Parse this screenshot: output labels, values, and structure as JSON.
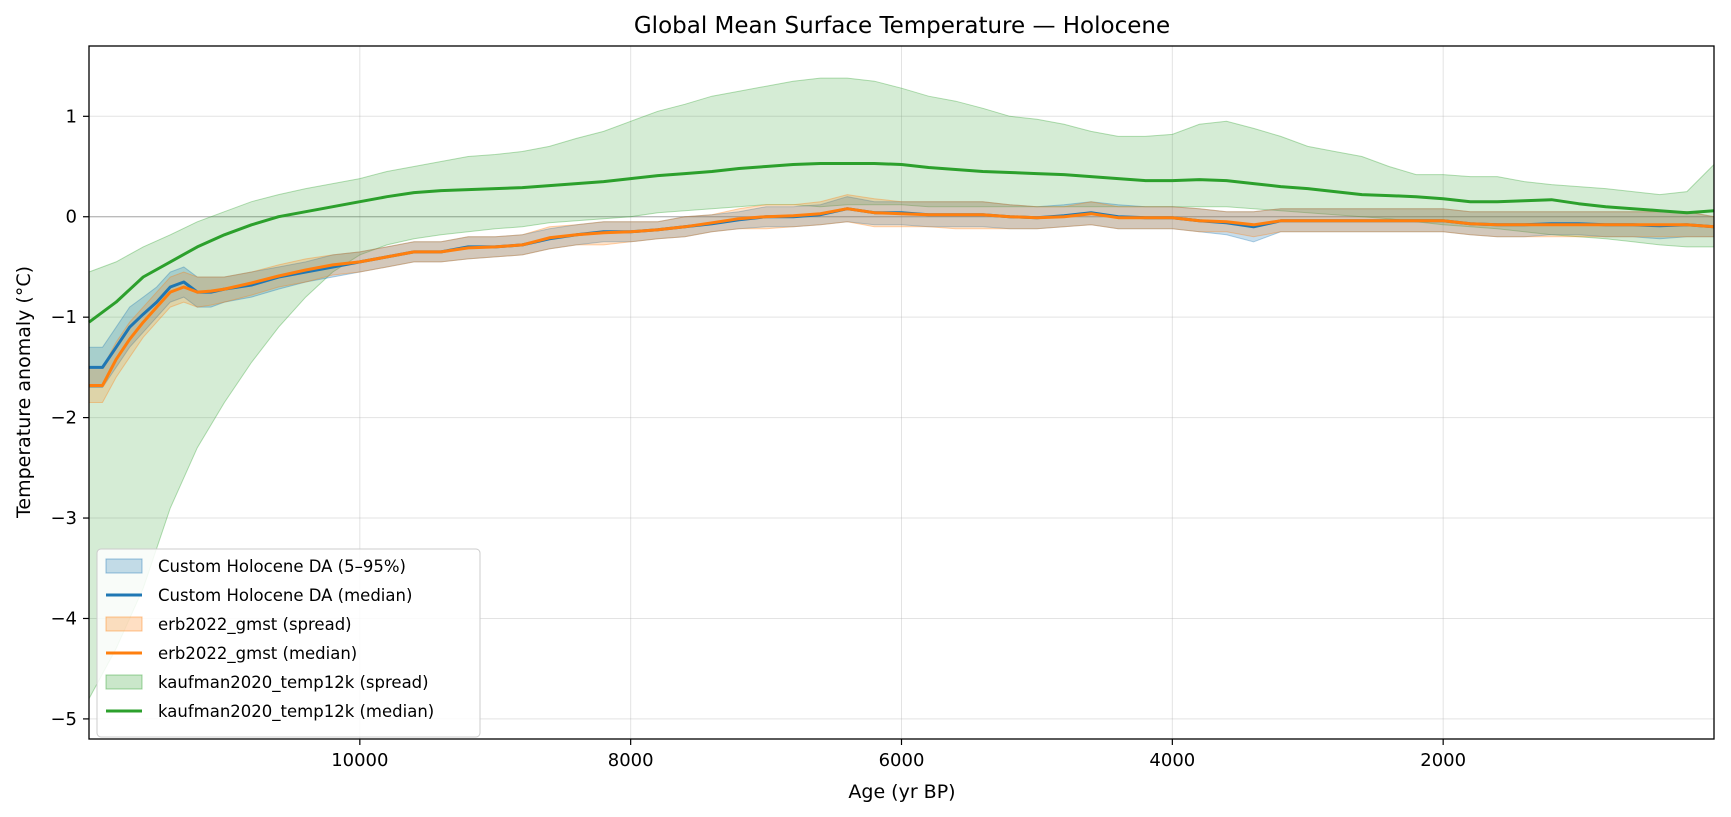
{
  "chart_data": {
    "type": "line",
    "title": "Global Mean Surface Temperature — Holocene",
    "xlabel": "Age (yr BP)",
    "ylabel": "Temperature anomaly (°C)",
    "xlim": [
      12000,
      0
    ],
    "x_reversed": true,
    "ylim": [
      -5.2,
      1.7
    ],
    "grid": true,
    "zero_line": true,
    "legend_position": "lower-left",
    "x_ticks": [
      {
        "value": 10000,
        "label": "10000"
      },
      {
        "value": 8000,
        "label": "8000"
      },
      {
        "value": 6000,
        "label": "6000"
      },
      {
        "value": 4000,
        "label": "4000"
      },
      {
        "value": 2000,
        "label": "2000"
      }
    ],
    "y_ticks": [
      {
        "value": 1,
        "label": "1"
      },
      {
        "value": 0,
        "label": "0"
      },
      {
        "value": -1,
        "label": "−1"
      },
      {
        "value": -2,
        "label": "−2"
      },
      {
        "value": -3,
        "label": "−3"
      },
      {
        "value": -4,
        "label": "−4"
      },
      {
        "value": -5,
        "label": "−5"
      }
    ],
    "bands": [
      {
        "name": "kaufman2020_temp12k (spread)",
        "color": "#2ca02c",
        "opacity": 0.2,
        "x": [
          12000,
          11800,
          11600,
          11400,
          11200,
          11000,
          10800,
          10600,
          10400,
          10200,
          10000,
          9800,
          9600,
          9400,
          9200,
          9000,
          8800,
          8600,
          8400,
          8200,
          8000,
          7800,
          7600,
          7400,
          7200,
          7000,
          6800,
          6600,
          6400,
          6200,
          6000,
          5800,
          5600,
          5400,
          5200,
          5000,
          4800,
          4600,
          4400,
          4200,
          4000,
          3800,
          3600,
          3400,
          3200,
          3000,
          2800,
          2600,
          2400,
          2200,
          2000,
          1800,
          1600,
          1400,
          1200,
          1000,
          800,
          600,
          400,
          200,
          0
        ],
        "upper": [
          -0.55,
          -0.45,
          -0.3,
          -0.18,
          -0.05,
          0.05,
          0.15,
          0.22,
          0.28,
          0.33,
          0.38,
          0.45,
          0.5,
          0.55,
          0.6,
          0.62,
          0.65,
          0.7,
          0.78,
          0.85,
          0.95,
          1.05,
          1.12,
          1.2,
          1.25,
          1.3,
          1.35,
          1.38,
          1.38,
          1.35,
          1.28,
          1.2,
          1.15,
          1.08,
          1.0,
          0.97,
          0.92,
          0.85,
          0.8,
          0.8,
          0.82,
          0.92,
          0.95,
          0.88,
          0.8,
          0.7,
          0.65,
          0.6,
          0.5,
          0.42,
          0.42,
          0.4,
          0.4,
          0.35,
          0.32,
          0.3,
          0.28,
          0.25,
          0.22,
          0.25,
          0.52
        ],
        "lower": [
          -4.8,
          -4.3,
          -3.7,
          -2.9,
          -2.3,
          -1.85,
          -1.45,
          -1.1,
          -0.8,
          -0.55,
          -0.38,
          -0.28,
          -0.22,
          -0.18,
          -0.15,
          -0.12,
          -0.1,
          -0.06,
          -0.04,
          -0.02,
          0.0,
          0.04,
          0.06,
          0.08,
          0.1,
          0.12,
          0.12,
          0.1,
          0.12,
          0.12,
          0.12,
          0.1,
          0.1,
          0.1,
          0.1,
          0.1,
          0.1,
          0.1,
          0.1,
          0.1,
          0.1,
          0.1,
          0.1,
          0.08,
          0.06,
          0.04,
          0.02,
          0.0,
          -0.02,
          -0.05,
          -0.08,
          -0.1,
          -0.12,
          -0.15,
          -0.18,
          -0.2,
          -0.22,
          -0.25,
          -0.28,
          -0.3,
          -0.3
        ]
      },
      {
        "name": "Custom Holocene DA (5–95%)",
        "color": "#1f77b4",
        "opacity": 0.25,
        "x": [
          12000,
          11900,
          11800,
          11700,
          11600,
          11500,
          11400,
          11300,
          11200,
          11100,
          11000,
          10800,
          10600,
          10400,
          10200,
          10000,
          9800,
          9600,
          9400,
          9200,
          9000,
          8800,
          8600,
          8400,
          8200,
          8000,
          7800,
          7600,
          7400,
          7200,
          7000,
          6800,
          6600,
          6400,
          6200,
          6000,
          5800,
          5600,
          5400,
          5200,
          5000,
          4800,
          4600,
          4400,
          4200,
          4000,
          3800,
          3600,
          3400,
          3200,
          3000,
          2800,
          2600,
          2400,
          2200,
          2000,
          1800,
          1600,
          1400,
          1200,
          1000,
          800,
          600,
          400,
          200,
          0
        ],
        "upper": [
          -1.3,
          -1.3,
          -1.1,
          -0.9,
          -0.8,
          -0.7,
          -0.55,
          -0.5,
          -0.6,
          -0.6,
          -0.6,
          -0.55,
          -0.5,
          -0.45,
          -0.38,
          -0.35,
          -0.3,
          -0.25,
          -0.25,
          -0.2,
          -0.2,
          -0.18,
          -0.12,
          -0.08,
          -0.05,
          -0.05,
          -0.05,
          0.0,
          0.02,
          0.05,
          0.1,
          0.1,
          0.12,
          0.2,
          0.15,
          0.15,
          0.15,
          0.15,
          0.15,
          0.12,
          0.1,
          0.12,
          0.15,
          0.12,
          0.1,
          0.1,
          0.08,
          0.05,
          0.05,
          0.08,
          0.08,
          0.08,
          0.08,
          0.08,
          0.08,
          0.08,
          0.05,
          0.05,
          0.05,
          0.05,
          0.05,
          0.05,
          0.05,
          0.05,
          0.05,
          0.0
        ],
        "lower": [
          -1.7,
          -1.7,
          -1.5,
          -1.3,
          -1.15,
          -1.0,
          -0.85,
          -0.8,
          -0.9,
          -0.9,
          -0.85,
          -0.8,
          -0.72,
          -0.65,
          -0.6,
          -0.55,
          -0.5,
          -0.45,
          -0.45,
          -0.42,
          -0.4,
          -0.38,
          -0.32,
          -0.28,
          -0.25,
          -0.25,
          -0.22,
          -0.2,
          -0.15,
          -0.12,
          -0.1,
          -0.1,
          -0.08,
          -0.05,
          -0.08,
          -0.08,
          -0.1,
          -0.1,
          -0.1,
          -0.12,
          -0.12,
          -0.1,
          -0.08,
          -0.12,
          -0.12,
          -0.12,
          -0.15,
          -0.18,
          -0.25,
          -0.15,
          -0.15,
          -0.15,
          -0.15,
          -0.15,
          -0.15,
          -0.15,
          -0.18,
          -0.2,
          -0.2,
          -0.18,
          -0.18,
          -0.2,
          -0.2,
          -0.22,
          -0.2,
          -0.2
        ]
      },
      {
        "name": "erb2022_gmst (spread)",
        "color": "#ff7f0e",
        "opacity": 0.22,
        "x": [
          12000,
          11900,
          11800,
          11700,
          11600,
          11500,
          11400,
          11300,
          11200,
          11100,
          11000,
          10800,
          10600,
          10400,
          10200,
          10000,
          9800,
          9600,
          9400,
          9200,
          9000,
          8800,
          8600,
          8400,
          8200,
          8000,
          7800,
          7600,
          7400,
          7200,
          7000,
          6800,
          6600,
          6400,
          6200,
          6000,
          5800,
          5600,
          5400,
          5200,
          5000,
          4800,
          4600,
          4400,
          4200,
          4000,
          3800,
          3600,
          3400,
          3200,
          3000,
          2800,
          2600,
          2400,
          2200,
          2000,
          1800,
          1600,
          1400,
          1200,
          1000,
          800,
          600,
          400,
          200,
          0
        ],
        "upper": [
          -1.5,
          -1.5,
          -1.25,
          -1.05,
          -0.9,
          -0.75,
          -0.6,
          -0.55,
          -0.6,
          -0.6,
          -0.6,
          -0.55,
          -0.48,
          -0.42,
          -0.38,
          -0.35,
          -0.3,
          -0.25,
          -0.25,
          -0.2,
          -0.2,
          -0.18,
          -0.1,
          -0.08,
          -0.05,
          -0.05,
          -0.05,
          0.0,
          0.02,
          0.08,
          0.12,
          0.12,
          0.15,
          0.22,
          0.18,
          0.15,
          0.15,
          0.15,
          0.15,
          0.12,
          0.1,
          0.1,
          0.15,
          0.1,
          0.1,
          0.1,
          0.08,
          0.05,
          0.05,
          0.08,
          0.08,
          0.08,
          0.08,
          0.08,
          0.08,
          0.08,
          0.05,
          0.05,
          0.05,
          0.05,
          0.05,
          0.05,
          0.05,
          0.05,
          0.05,
          0.0
        ],
        "lower": [
          -1.85,
          -1.85,
          -1.6,
          -1.4,
          -1.2,
          -1.05,
          -0.9,
          -0.85,
          -0.9,
          -0.88,
          -0.85,
          -0.78,
          -0.7,
          -0.65,
          -0.58,
          -0.55,
          -0.5,
          -0.45,
          -0.45,
          -0.42,
          -0.4,
          -0.38,
          -0.32,
          -0.28,
          -0.28,
          -0.25,
          -0.22,
          -0.2,
          -0.15,
          -0.12,
          -0.12,
          -0.1,
          -0.08,
          -0.05,
          -0.1,
          -0.1,
          -0.1,
          -0.12,
          -0.12,
          -0.12,
          -0.12,
          -0.1,
          -0.08,
          -0.12,
          -0.12,
          -0.12,
          -0.15,
          -0.15,
          -0.2,
          -0.15,
          -0.15,
          -0.15,
          -0.15,
          -0.15,
          -0.15,
          -0.15,
          -0.18,
          -0.2,
          -0.2,
          -0.2,
          -0.2,
          -0.2,
          -0.2,
          -0.2,
          -0.2,
          -0.2
        ]
      }
    ],
    "series": [
      {
        "name": "Custom Holocene DA (median)",
        "color": "#1f77b4",
        "x": [
          12000,
          11900,
          11800,
          11700,
          11600,
          11500,
          11400,
          11300,
          11200,
          11100,
          11000,
          10800,
          10600,
          10400,
          10200,
          10000,
          9800,
          9600,
          9400,
          9200,
          9000,
          8800,
          8600,
          8400,
          8200,
          8000,
          7800,
          7600,
          7400,
          7200,
          7000,
          6800,
          6600,
          6400,
          6200,
          6000,
          5800,
          5600,
          5400,
          5200,
          5000,
          4800,
          4600,
          4400,
          4200,
          4000,
          3800,
          3600,
          3400,
          3200,
          3000,
          2800,
          2600,
          2400,
          2200,
          2000,
          1800,
          1600,
          1400,
          1200,
          1000,
          800,
          600,
          400,
          200,
          0
        ],
        "y": [
          -1.5,
          -1.5,
          -1.3,
          -1.1,
          -0.97,
          -0.85,
          -0.7,
          -0.65,
          -0.75,
          -0.75,
          -0.72,
          -0.68,
          -0.6,
          -0.55,
          -0.5,
          -0.45,
          -0.4,
          -0.35,
          -0.35,
          -0.3,
          -0.3,
          -0.28,
          -0.22,
          -0.18,
          -0.15,
          -0.15,
          -0.13,
          -0.1,
          -0.07,
          -0.03,
          0.0,
          0.0,
          0.02,
          0.08,
          0.04,
          0.04,
          0.02,
          0.02,
          0.02,
          0.0,
          -0.01,
          0.01,
          0.04,
          0.0,
          -0.01,
          -0.01,
          -0.04,
          -0.06,
          -0.1,
          -0.04,
          -0.04,
          -0.04,
          -0.04,
          -0.04,
          -0.04,
          -0.04,
          -0.07,
          -0.08,
          -0.08,
          -0.07,
          -0.07,
          -0.08,
          -0.08,
          -0.09,
          -0.08,
          -0.1
        ]
      },
      {
        "name": "erb2022_gmst (median)",
        "color": "#ff7f0e",
        "x": [
          12000,
          11900,
          11800,
          11700,
          11600,
          11500,
          11400,
          11300,
          11200,
          11100,
          11000,
          10800,
          10600,
          10400,
          10200,
          10000,
          9800,
          9600,
          9400,
          9200,
          9000,
          8800,
          8600,
          8400,
          8200,
          8000,
          7800,
          7600,
          7400,
          7200,
          7000,
          6800,
          6600,
          6400,
          6200,
          6000,
          5800,
          5600,
          5400,
          5200,
          5000,
          4800,
          4600,
          4400,
          4200,
          4000,
          3800,
          3600,
          3400,
          3200,
          3000,
          2800,
          2600,
          2400,
          2200,
          2000,
          1800,
          1600,
          1400,
          1200,
          1000,
          800,
          600,
          400,
          200,
          0
        ],
        "y": [
          -1.68,
          -1.68,
          -1.42,
          -1.22,
          -1.05,
          -0.9,
          -0.75,
          -0.7,
          -0.75,
          -0.74,
          -0.72,
          -0.66,
          -0.59,
          -0.53,
          -0.48,
          -0.45,
          -0.4,
          -0.35,
          -0.35,
          -0.31,
          -0.3,
          -0.28,
          -0.21,
          -0.18,
          -0.16,
          -0.15,
          -0.13,
          -0.1,
          -0.06,
          -0.02,
          0.0,
          0.01,
          0.03,
          0.08,
          0.04,
          0.03,
          0.02,
          0.02,
          0.02,
          0.0,
          -0.01,
          0.0,
          0.03,
          -0.01,
          -0.01,
          -0.01,
          -0.04,
          -0.05,
          -0.08,
          -0.04,
          -0.04,
          -0.04,
          -0.04,
          -0.04,
          -0.04,
          -0.04,
          -0.07,
          -0.08,
          -0.08,
          -0.08,
          -0.08,
          -0.08,
          -0.08,
          -0.08,
          -0.08,
          -0.1
        ]
      },
      {
        "name": "kaufman2020_temp12k (median)",
        "color": "#2ca02c",
        "x": [
          12000,
          11800,
          11600,
          11400,
          11200,
          11000,
          10800,
          10600,
          10400,
          10200,
          10000,
          9800,
          9600,
          9400,
          9200,
          9000,
          8800,
          8600,
          8400,
          8200,
          8000,
          7800,
          7600,
          7400,
          7200,
          7000,
          6800,
          6600,
          6400,
          6200,
          6000,
          5800,
          5600,
          5400,
          5200,
          5000,
          4800,
          4600,
          4400,
          4200,
          4000,
          3800,
          3600,
          3400,
          3200,
          3000,
          2800,
          2600,
          2400,
          2200,
          2000,
          1800,
          1600,
          1400,
          1200,
          1000,
          800,
          600,
          400,
          200,
          0
        ],
        "y": [
          -1.05,
          -0.85,
          -0.6,
          -0.45,
          -0.3,
          -0.18,
          -0.08,
          0.0,
          0.05,
          0.1,
          0.15,
          0.2,
          0.24,
          0.26,
          0.27,
          0.28,
          0.29,
          0.31,
          0.33,
          0.35,
          0.38,
          0.41,
          0.43,
          0.45,
          0.48,
          0.5,
          0.52,
          0.53,
          0.53,
          0.53,
          0.52,
          0.49,
          0.47,
          0.45,
          0.44,
          0.43,
          0.42,
          0.4,
          0.38,
          0.36,
          0.36,
          0.37,
          0.36,
          0.33,
          0.3,
          0.28,
          0.25,
          0.22,
          0.21,
          0.2,
          0.18,
          0.15,
          0.15,
          0.16,
          0.17,
          0.13,
          0.1,
          0.08,
          0.06,
          0.04,
          0.06
        ]
      }
    ],
    "legend": [
      {
        "label": "Custom Holocene DA (5–95%)",
        "kind": "patch",
        "color": "#1f77b4"
      },
      {
        "label": "Custom Holocene DA (median)",
        "kind": "line",
        "color": "#1f77b4"
      },
      {
        "label": "erb2022_gmst (spread)",
        "kind": "patch",
        "color": "#ff7f0e"
      },
      {
        "label": "erb2022_gmst (median)",
        "kind": "line",
        "color": "#ff7f0e"
      },
      {
        "label": "kaufman2020_temp12k (spread)",
        "kind": "patch",
        "color": "#2ca02c"
      },
      {
        "label": "kaufman2020_temp12k (median)",
        "kind": "line",
        "color": "#2ca02c"
      }
    ]
  }
}
